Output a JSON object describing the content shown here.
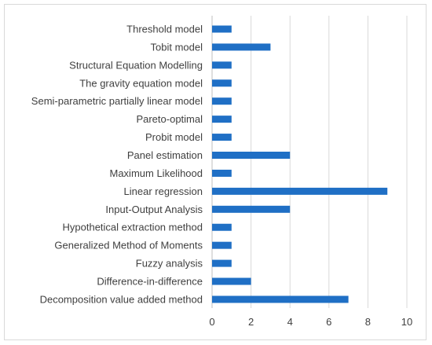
{
  "chart_data": {
    "type": "bar",
    "orientation": "horizontal",
    "title": "",
    "xlabel": "",
    "ylabel": "",
    "xlim": [
      0,
      10
    ],
    "x_ticks": [
      "0",
      "2",
      "4",
      "6",
      "8",
      "10"
    ],
    "grid": true,
    "legend": "none",
    "bar_color": "#1f6fc5",
    "categories": [
      "Threshold model",
      "Tobit model",
      "Structural Equation Modelling",
      "The gravity equation model",
      "Semi-parametric partially linear model",
      "Pareto-optimal",
      "Probit model",
      "Panel estimation",
      "Maximum Likelihood",
      "Linear regression",
      "Input-Output Analysis",
      "Hypothetical extraction method",
      "Generalized Method of Moments",
      "Fuzzy analysis",
      "Difference-in-difference",
      "Decomposition value added method"
    ],
    "values": [
      1,
      3,
      1,
      1,
      1,
      1,
      1,
      4,
      1,
      9,
      4,
      1,
      1,
      1,
      2,
      7
    ]
  }
}
